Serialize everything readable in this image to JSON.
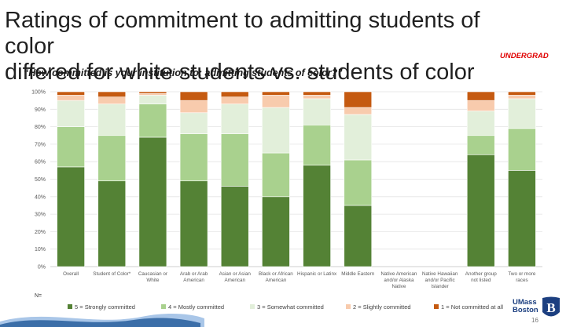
{
  "slide": {
    "title_line1": "Ratings of commitment to admitting students of color",
    "title_line2": "differed for white students vs. students of color",
    "tag": "UNDERGRAD",
    "subtitle": "“How committed is your institution to: admitting students of color?”",
    "n_label": "N=",
    "page_number": "16",
    "logo_line1": "UMass",
    "logo_line2": "Boston",
    "logo_mark": "B"
  },
  "chart_data": {
    "type": "bar",
    "stacked": true,
    "ylim": [
      0,
      100
    ],
    "yticks": [
      0,
      10,
      20,
      30,
      40,
      50,
      60,
      70,
      80,
      90,
      100
    ],
    "ytick_format": "percent",
    "grid": "horizontal",
    "legend_position": "bottom",
    "categories": [
      [
        "Overall"
      ],
      [
        "Student of Color*"
      ],
      [
        "Caucasian or",
        "White"
      ],
      [
        "Arab or Arab",
        "American"
      ],
      [
        "Asian or Asian",
        "American"
      ],
      [
        "Black or African",
        "American"
      ],
      [
        "Hispanic or Latinx"
      ],
      [
        "Middle Eastern"
      ],
      [
        "Native American",
        "and/or Alaska",
        "Native"
      ],
      [
        "Native Hawaiian",
        "and/or Pacific",
        "Islander"
      ],
      [
        "Another group",
        "not listed"
      ],
      [
        "Two or more",
        "races"
      ]
    ],
    "series": [
      {
        "name": "5 = Strongly committed",
        "color": "#548235",
        "values": [
          57,
          49,
          74,
          49,
          46,
          40,
          58,
          35,
          0,
          0,
          64,
          55
        ]
      },
      {
        "name": "4 = Mostly committed",
        "color": "#a9d18e",
        "values": [
          23,
          26,
          19,
          27,
          30,
          25,
          23,
          26,
          0,
          0,
          11,
          24
        ]
      },
      {
        "name": "3 = Somewhat committed",
        "color": "#e2efda",
        "values": [
          15,
          18,
          5,
          12,
          17,
          26,
          15,
          26,
          0,
          0,
          14,
          17
        ]
      },
      {
        "name": "2 = Slightly committed",
        "color": "#f8cbad",
        "values": [
          3,
          4,
          1,
          7,
          4,
          7,
          2,
          4,
          0,
          0,
          6,
          2
        ]
      },
      {
        "name": "1 = Not committed at all",
        "color": "#c55a11",
        "values": [
          2,
          3,
          1,
          5,
          3,
          2,
          2,
          9,
          0,
          0,
          5,
          2
        ]
      }
    ]
  },
  "colors": {
    "wave_dark": "#3b6ea8",
    "wave_light": "#a9c6e8",
    "logo_blue": "#1c3f80"
  }
}
